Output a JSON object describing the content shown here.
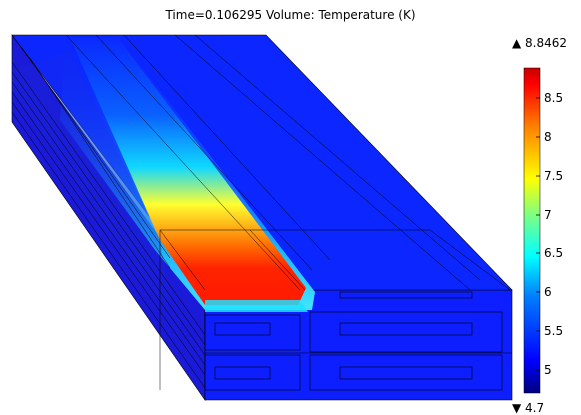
{
  "plot": {
    "title": "Time=0.106295   Volume: Temperature (K)"
  },
  "colorbar": {
    "max_label": "▲ 8.8462",
    "min_label": "▼ 4.7",
    "ticks": [
      "8.5",
      "8",
      "7.5",
      "7",
      "6.5",
      "6",
      "5.5",
      "5"
    ],
    "range": [
      4.7,
      8.8462
    ],
    "colormap": [
      "#00007f",
      "#0000ff",
      "#00a0ff",
      "#00ffff",
      "#a0ff60",
      "#ffff00",
      "#ff8000",
      "#ff0000",
      "#c00000"
    ]
  }
}
